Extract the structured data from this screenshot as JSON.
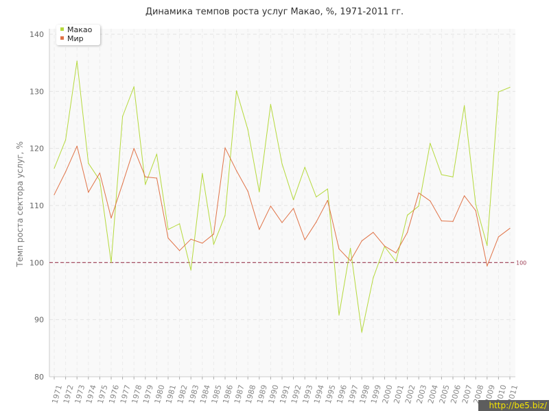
{
  "chart_data": {
    "type": "line",
    "title": "Динамика темпов роста услуг Макао, %, 1971-2011 гг.",
    "xlabel": "",
    "ylabel": "Темп роста сектора услуг, %",
    "ylim": [
      80,
      140
    ],
    "yticks": [
      80,
      90,
      100,
      110,
      120,
      130,
      140
    ],
    "grid": true,
    "legend_position": "top-left",
    "x": [
      1971,
      1972,
      1973,
      1974,
      1975,
      1976,
      1977,
      1978,
      1979,
      1980,
      1981,
      1982,
      1983,
      1984,
      1985,
      1986,
      1987,
      1988,
      1989,
      1990,
      1991,
      1992,
      1993,
      1994,
      1995,
      1996,
      1997,
      1998,
      1999,
      2000,
      2001,
      2002,
      2003,
      2004,
      2005,
      2006,
      2007,
      2008,
      2009,
      2010,
      2011
    ],
    "series": [
      {
        "name": "Макао",
        "color": "#b5d93c",
        "values": [
          116.5,
          121.5,
          135.3,
          117.4,
          114.4,
          100.0,
          125.6,
          130.8,
          113.7,
          119.0,
          105.8,
          106.8,
          98.7,
          115.6,
          103.2,
          108.3,
          130.1,
          123.3,
          112.4,
          127.7,
          117.3,
          111.0,
          116.7,
          111.5,
          112.9,
          90.8,
          102.5,
          87.8,
          97.3,
          102.8,
          100.2,
          108.3,
          109.9,
          120.9,
          115.4,
          115.0,
          127.5,
          110.2,
          103.0,
          129.9,
          130.7
        ]
      },
      {
        "name": "Мир",
        "color": "#e07246",
        "values": [
          111.9,
          115.9,
          120.4,
          112.3,
          115.7,
          107.8,
          113.8,
          120.0,
          115.0,
          114.8,
          104.3,
          102.1,
          104.1,
          103.4,
          105.0,
          120.1,
          116.1,
          112.5,
          105.8,
          109.9,
          107.0,
          109.5,
          104.0,
          107.1,
          110.9,
          102.4,
          100.3,
          103.8,
          105.3,
          102.9,
          101.7,
          105.3,
          112.2,
          110.8,
          107.3,
          107.2,
          111.7,
          109.1,
          99.4,
          104.5,
          106.0
        ]
      }
    ],
    "reference_line": {
      "value": 100,
      "label": "100",
      "color": "#9b3b52"
    }
  },
  "watermark": "http://be5.biz/"
}
